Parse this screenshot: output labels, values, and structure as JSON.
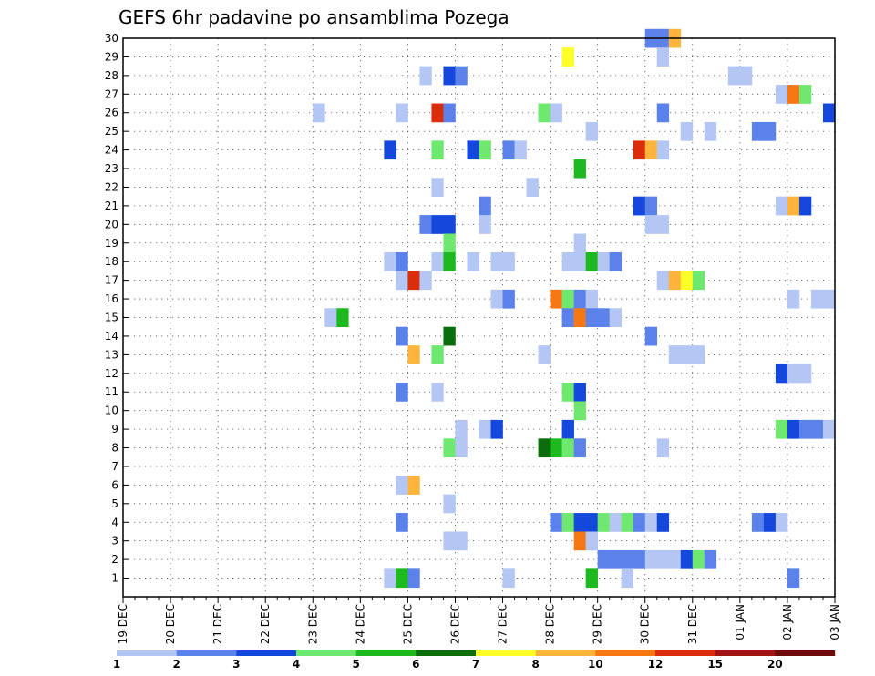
{
  "chart_data": {
    "type": "heatmap",
    "title": "GEFS 6hr padavine po ansamblima Pozega",
    "xlabel": "",
    "ylabel": "",
    "x_tick_labels": [
      "19 DEC",
      "20 DEC",
      "21 DEC",
      "22 DEC",
      "23 DEC",
      "24 DEC",
      "25 DEC",
      "26 DEC",
      "27 DEC",
      "28 DEC",
      "29 DEC",
      "30 DEC",
      "31 DEC",
      "01 JAN",
      "02 JAN",
      "03 JAN"
    ],
    "y_tick_labels": [
      "1",
      "2",
      "3",
      "4",
      "5",
      "6",
      "7",
      "8",
      "9",
      "10",
      "11",
      "12",
      "13",
      "14",
      "15",
      "16",
      "17",
      "18",
      "19",
      "20",
      "21",
      "22",
      "23",
      "24",
      "25",
      "26",
      "27",
      "28",
      "29",
      "30"
    ],
    "xlim_steps": [
      0,
      60
    ],
    "ylim_members": [
      0,
      30
    ],
    "grid": true,
    "colorbar": {
      "placement": "bottom",
      "labels": [
        "1",
        "2",
        "3",
        "4",
        "5",
        "6",
        "7",
        "8",
        "10",
        "12",
        "15",
        "20"
      ],
      "colors": [
        "#b4c6f4",
        "#5a82ea",
        "#1448dc",
        "#6ee86e",
        "#1eb91e",
        "#0a6e0a",
        "#ffff28",
        "#ffb43c",
        "#f57814",
        "#dc2d0a",
        "#a01414",
        "#6e0a0a"
      ]
    },
    "cells": [
      {
        "m": 30,
        "t": 44.5,
        "c": 2
      },
      {
        "m": 30,
        "t": 45.5,
        "c": 2
      },
      {
        "m": 30,
        "t": 46.5,
        "c": 8
      },
      {
        "m": 29,
        "t": 37.5,
        "c": 7
      },
      {
        "m": 29,
        "t": 45.5,
        "c": 1
      },
      {
        "m": 28,
        "t": 25.5,
        "c": 1
      },
      {
        "m": 28,
        "t": 27.5,
        "c": 3
      },
      {
        "m": 28,
        "t": 28.5,
        "c": 2
      },
      {
        "m": 28,
        "t": 51.5,
        "c": 1
      },
      {
        "m": 28,
        "t": 52.5,
        "c": 1
      },
      {
        "m": 27,
        "t": 55.5,
        "c": 1
      },
      {
        "m": 27,
        "t": 56.5,
        "c": 9
      },
      {
        "m": 27,
        "t": 57.5,
        "c": 4
      },
      {
        "m": 26,
        "t": 16.5,
        "c": 1
      },
      {
        "m": 26,
        "t": 23.5,
        "c": 1
      },
      {
        "m": 26,
        "t": 26.5,
        "c": 10
      },
      {
        "m": 26,
        "t": 27.5,
        "c": 2
      },
      {
        "m": 26,
        "t": 35.5,
        "c": 4
      },
      {
        "m": 26,
        "t": 36.5,
        "c": 1
      },
      {
        "m": 26,
        "t": 45.5,
        "c": 2
      },
      {
        "m": 26,
        "t": 59.5,
        "c": 3
      },
      {
        "m": 25,
        "t": 39.5,
        "c": 1
      },
      {
        "m": 25,
        "t": 47.5,
        "c": 1
      },
      {
        "m": 25,
        "t": 49.5,
        "c": 1
      },
      {
        "m": 25,
        "t": 53.5,
        "c": 2
      },
      {
        "m": 25,
        "t": 54.5,
        "c": 2
      },
      {
        "m": 24,
        "t": 22.5,
        "c": 3
      },
      {
        "m": 24,
        "t": 26.5,
        "c": 4
      },
      {
        "m": 24,
        "t": 29.5,
        "c": 3
      },
      {
        "m": 24,
        "t": 30.5,
        "c": 4
      },
      {
        "m": 24,
        "t": 32.5,
        "c": 2
      },
      {
        "m": 24,
        "t": 33.5,
        "c": 1
      },
      {
        "m": 24,
        "t": 43.5,
        "c": 10
      },
      {
        "m": 24,
        "t": 44.5,
        "c": 8
      },
      {
        "m": 24,
        "t": 45.5,
        "c": 1
      },
      {
        "m": 23,
        "t": 38.5,
        "c": 5
      },
      {
        "m": 22,
        "t": 26.5,
        "c": 1
      },
      {
        "m": 22,
        "t": 34.5,
        "c": 1
      },
      {
        "m": 21,
        "t": 30.5,
        "c": 2
      },
      {
        "m": 21,
        "t": 43.5,
        "c": 3
      },
      {
        "m": 21,
        "t": 44.5,
        "c": 2
      },
      {
        "m": 21,
        "t": 55.5,
        "c": 1
      },
      {
        "m": 21,
        "t": 56.5,
        "c": 8
      },
      {
        "m": 21,
        "t": 57.5,
        "c": 3
      },
      {
        "m": 20,
        "t": 25.5,
        "c": 2
      },
      {
        "m": 20,
        "t": 26.5,
        "c": 3
      },
      {
        "m": 20,
        "t": 27.5,
        "c": 3
      },
      {
        "m": 20,
        "t": 30.5,
        "c": 1
      },
      {
        "m": 20,
        "t": 44.5,
        "c": 1
      },
      {
        "m": 20,
        "t": 45.5,
        "c": 1
      },
      {
        "m": 19,
        "t": 27.5,
        "c": 4
      },
      {
        "m": 19,
        "t": 38.5,
        "c": 1
      },
      {
        "m": 18,
        "t": 22.5,
        "c": 1
      },
      {
        "m": 18,
        "t": 23.5,
        "c": 2
      },
      {
        "m": 18,
        "t": 26.5,
        "c": 1
      },
      {
        "m": 18,
        "t": 27.5,
        "c": 5
      },
      {
        "m": 18,
        "t": 29.5,
        "c": 1
      },
      {
        "m": 18,
        "t": 31.5,
        "c": 1
      },
      {
        "m": 18,
        "t": 32.5,
        "c": 1
      },
      {
        "m": 18,
        "t": 37.5,
        "c": 1
      },
      {
        "m": 18,
        "t": 38.5,
        "c": 1
      },
      {
        "m": 18,
        "t": 39.5,
        "c": 5
      },
      {
        "m": 18,
        "t": 40.5,
        "c": 1
      },
      {
        "m": 18,
        "t": 41.5,
        "c": 2
      },
      {
        "m": 17,
        "t": 23.5,
        "c": 1
      },
      {
        "m": 17,
        "t": 24.5,
        "c": 10
      },
      {
        "m": 17,
        "t": 25.5,
        "c": 1
      },
      {
        "m": 17,
        "t": 45.5,
        "c": 1
      },
      {
        "m": 17,
        "t": 46.5,
        "c": 8
      },
      {
        "m": 17,
        "t": 47.5,
        "c": 7
      },
      {
        "m": 17,
        "t": 48.5,
        "c": 4
      },
      {
        "m": 16,
        "t": 31.5,
        "c": 1
      },
      {
        "m": 16,
        "t": 32.5,
        "c": 2
      },
      {
        "m": 16,
        "t": 36.5,
        "c": 9
      },
      {
        "m": 16,
        "t": 37.5,
        "c": 4
      },
      {
        "m": 16,
        "t": 38.5,
        "c": 2
      },
      {
        "m": 16,
        "t": 39.5,
        "c": 1
      },
      {
        "m": 16,
        "t": 56.5,
        "c": 1
      },
      {
        "m": 16,
        "t": 58.5,
        "c": 1
      },
      {
        "m": 16,
        "t": 59.5,
        "c": 1
      },
      {
        "m": 15,
        "t": 17.5,
        "c": 1
      },
      {
        "m": 15,
        "t": 18.5,
        "c": 5
      },
      {
        "m": 15,
        "t": 37.5,
        "c": 2
      },
      {
        "m": 15,
        "t": 38.5,
        "c": 9
      },
      {
        "m": 15,
        "t": 39.5,
        "c": 2
      },
      {
        "m": 15,
        "t": 40.5,
        "c": 2
      },
      {
        "m": 15,
        "t": 41.5,
        "c": 1
      },
      {
        "m": 14,
        "t": 23.5,
        "c": 2
      },
      {
        "m": 14,
        "t": 27.5,
        "c": 6
      },
      {
        "m": 14,
        "t": 44.5,
        "c": 2
      },
      {
        "m": 13,
        "t": 24.5,
        "c": 8
      },
      {
        "m": 13,
        "t": 26.5,
        "c": 4
      },
      {
        "m": 13,
        "t": 35.5,
        "c": 1
      },
      {
        "m": 13,
        "t": 46.5,
        "c": 1
      },
      {
        "m": 13,
        "t": 47.5,
        "c": 1
      },
      {
        "m": 13,
        "t": 48.5,
        "c": 1
      },
      {
        "m": 12,
        "t": 55.5,
        "c": 3
      },
      {
        "m": 12,
        "t": 56.5,
        "c": 1
      },
      {
        "m": 12,
        "t": 57.5,
        "c": 1
      },
      {
        "m": 11,
        "t": 23.5,
        "c": 2
      },
      {
        "m": 11,
        "t": 26.5,
        "c": 1
      },
      {
        "m": 11,
        "t": 37.5,
        "c": 4
      },
      {
        "m": 11,
        "t": 38.5,
        "c": 3
      },
      {
        "m": 10,
        "t": 38.5,
        "c": 4
      },
      {
        "m": 9,
        "t": 28.5,
        "c": 1
      },
      {
        "m": 9,
        "t": 30.5,
        "c": 1
      },
      {
        "m": 9,
        "t": 31.5,
        "c": 3
      },
      {
        "m": 9,
        "t": 37.5,
        "c": 3
      },
      {
        "m": 9,
        "t": 55.5,
        "c": 4
      },
      {
        "m": 9,
        "t": 56.5,
        "c": 3
      },
      {
        "m": 9,
        "t": 57.5,
        "c": 2
      },
      {
        "m": 9,
        "t": 58.5,
        "c": 2
      },
      {
        "m": 9,
        "t": 59.5,
        "c": 1
      },
      {
        "m": 8,
        "t": 27.5,
        "c": 4
      },
      {
        "m": 8,
        "t": 28.5,
        "c": 1
      },
      {
        "m": 8,
        "t": 35.5,
        "c": 6
      },
      {
        "m": 8,
        "t": 36.5,
        "c": 5
      },
      {
        "m": 8,
        "t": 37.5,
        "c": 4
      },
      {
        "m": 8,
        "t": 38.5,
        "c": 2
      },
      {
        "m": 8,
        "t": 45.5,
        "c": 1
      },
      {
        "m": 6,
        "t": 23.5,
        "c": 1
      },
      {
        "m": 6,
        "t": 24.5,
        "c": 8
      },
      {
        "m": 5,
        "t": 27.5,
        "c": 1
      },
      {
        "m": 4,
        "t": 23.5,
        "c": 2
      },
      {
        "m": 4,
        "t": 36.5,
        "c": 2
      },
      {
        "m": 4,
        "t": 37.5,
        "c": 4
      },
      {
        "m": 4,
        "t": 38.5,
        "c": 3
      },
      {
        "m": 4,
        "t": 39.5,
        "c": 3
      },
      {
        "m": 4,
        "t": 40.5,
        "c": 4
      },
      {
        "m": 4,
        "t": 41.5,
        "c": 1
      },
      {
        "m": 4,
        "t": 42.5,
        "c": 4
      },
      {
        "m": 4,
        "t": 43.5,
        "c": 2
      },
      {
        "m": 4,
        "t": 44.5,
        "c": 1
      },
      {
        "m": 4,
        "t": 45.5,
        "c": 3
      },
      {
        "m": 4,
        "t": 53.5,
        "c": 2
      },
      {
        "m": 4,
        "t": 54.5,
        "c": 3
      },
      {
        "m": 4,
        "t": 55.5,
        "c": 1
      },
      {
        "m": 3,
        "t": 27.5,
        "c": 1
      },
      {
        "m": 3,
        "t": 28.5,
        "c": 1
      },
      {
        "m": 3,
        "t": 38.5,
        "c": 9
      },
      {
        "m": 3,
        "t": 39.5,
        "c": 1
      },
      {
        "m": 2,
        "t": 40.5,
        "c": 2
      },
      {
        "m": 2,
        "t": 41.5,
        "c": 2
      },
      {
        "m": 2,
        "t": 42.5,
        "c": 2
      },
      {
        "m": 2,
        "t": 43.5,
        "c": 2
      },
      {
        "m": 2,
        "t": 44.5,
        "c": 1
      },
      {
        "m": 2,
        "t": 45.5,
        "c": 1
      },
      {
        "m": 2,
        "t": 46.5,
        "c": 1
      },
      {
        "m": 2,
        "t": 47.5,
        "c": 3
      },
      {
        "m": 2,
        "t": 48.5,
        "c": 4
      },
      {
        "m": 2,
        "t": 49.5,
        "c": 2
      },
      {
        "m": 1,
        "t": 22.5,
        "c": 1
      },
      {
        "m": 1,
        "t": 23.5,
        "c": 5
      },
      {
        "m": 1,
        "t": 24.5,
        "c": 2
      },
      {
        "m": 1,
        "t": 32.5,
        "c": 1
      },
      {
        "m": 1,
        "t": 39.5,
        "c": 5
      },
      {
        "m": 1,
        "t": 42.5,
        "c": 1
      },
      {
        "m": 1,
        "t": 56.5,
        "c": 2
      }
    ]
  }
}
